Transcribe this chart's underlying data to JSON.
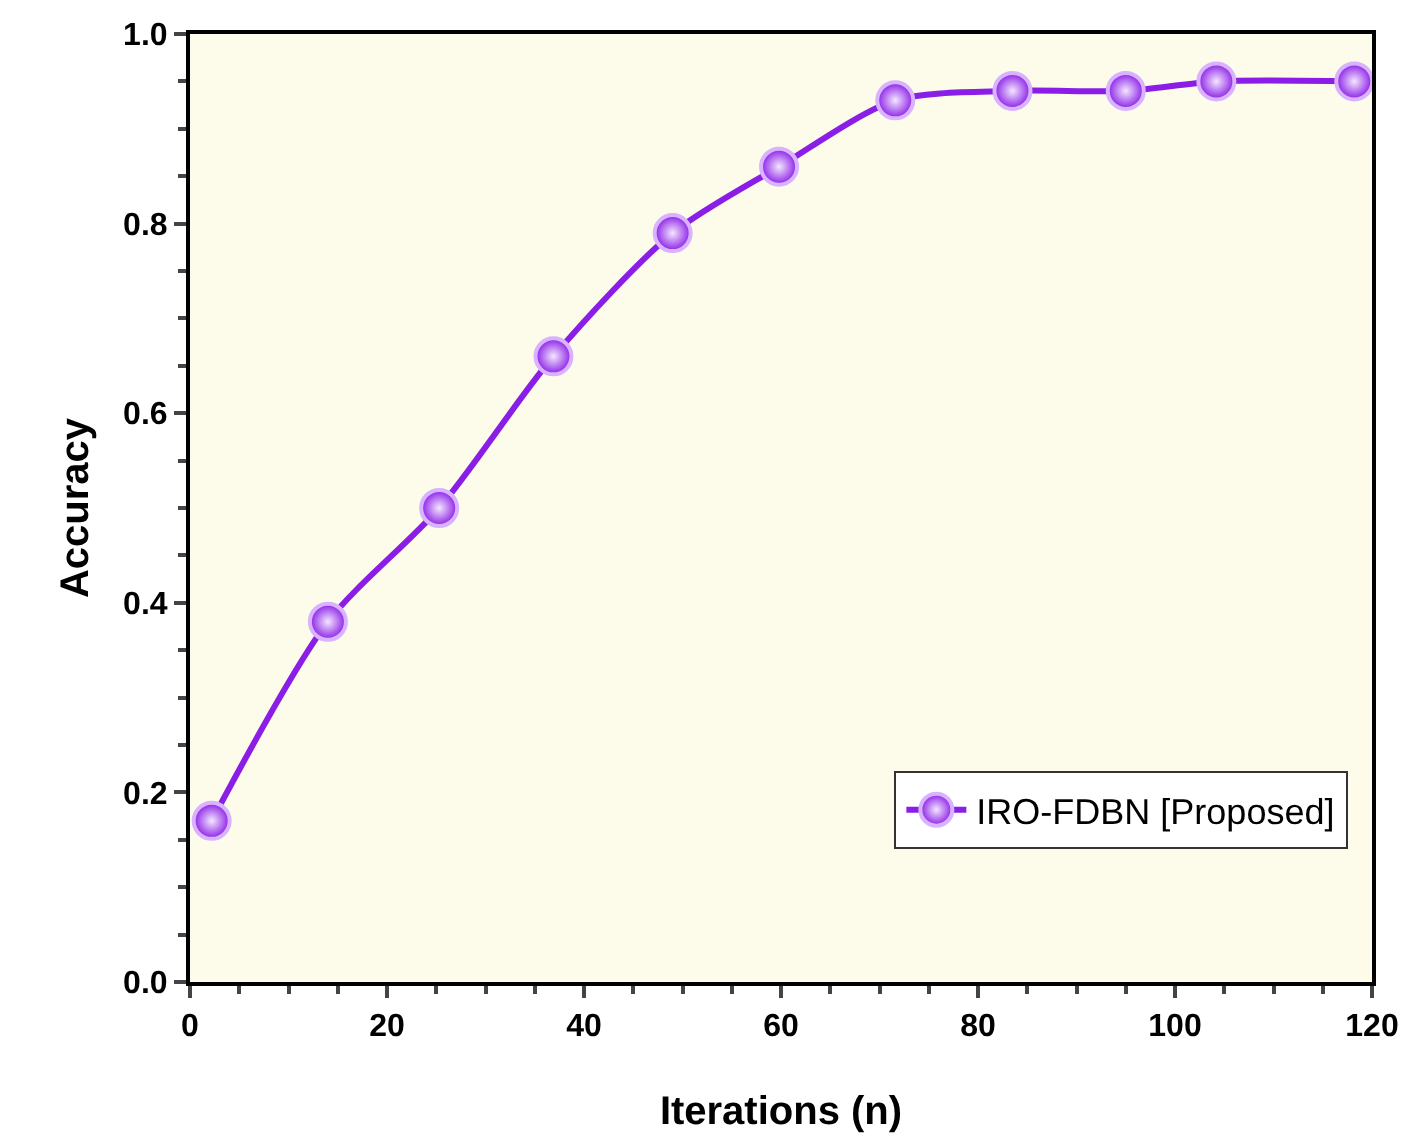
{
  "chart_data": {
    "type": "line",
    "xlabel": "Iterations (n)",
    "ylabel": "Accuracy",
    "x": [
      2.2,
      14,
      25.3,
      36.9,
      49,
      59.8,
      71.6,
      83.5,
      95,
      104.2,
      118.2
    ],
    "series": [
      {
        "name": "IRO-FDBN [Proposed]",
        "color": "#8a1ee6",
        "values": [
          0.17,
          0.38,
          0.5,
          0.66,
          0.79,
          0.86,
          0.93,
          0.94,
          0.94,
          0.95,
          0.95
        ]
      }
    ],
    "xlim": [
      0,
      120
    ],
    "xticks": [
      0,
      20,
      40,
      60,
      80,
      100,
      120
    ],
    "ylim": [
      0,
      1
    ],
    "yticks": [
      {
        "value": 0,
        "label": "0.0"
      },
      0.2,
      0.4,
      0.6,
      0.8,
      {
        "value": 1,
        "label": "1.0"
      }
    ],
    "grid": false,
    "legend": "bottom right",
    "marker": "circle",
    "line_style": "solid"
  }
}
